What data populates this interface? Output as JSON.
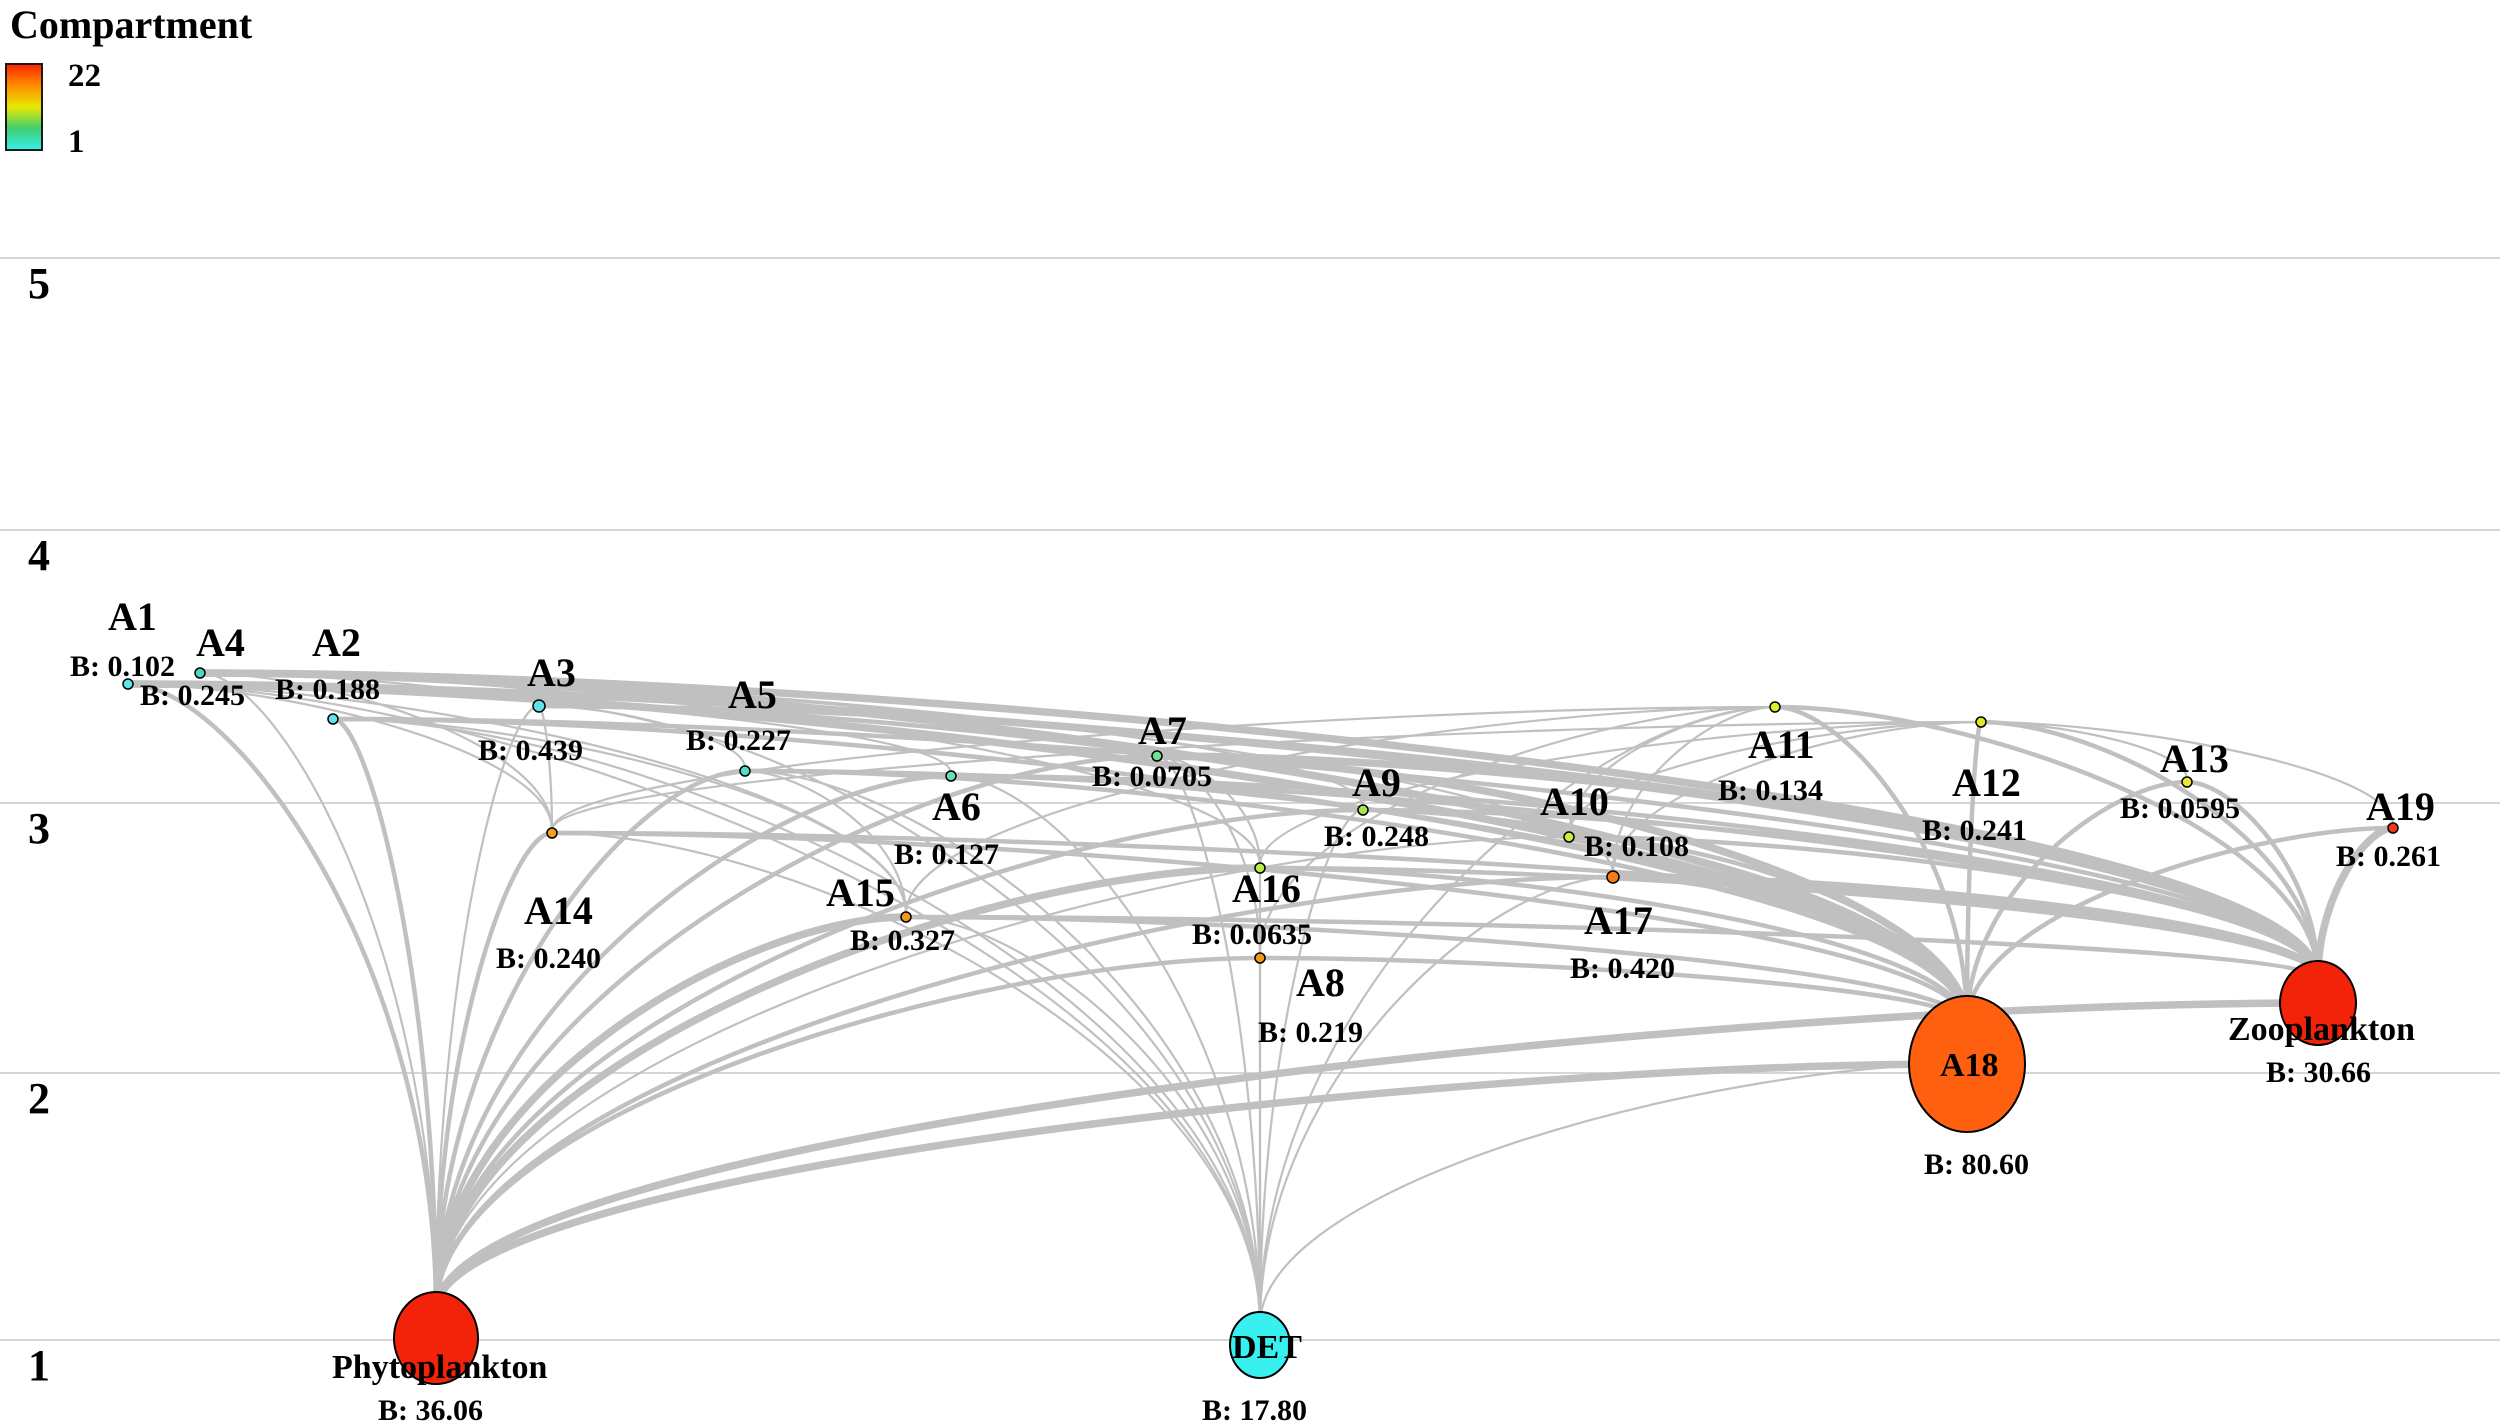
{
  "legend": {
    "title": "Compartment",
    "max_label": "22",
    "min_label": "1",
    "gradient_colors": [
      "#ff2200",
      "#ff8c00",
      "#e8e800",
      "#3ecf70",
      "#38f0f0"
    ]
  },
  "axis": {
    "ticks": [
      "1",
      "2",
      "3",
      "4",
      "5"
    ],
    "grid_color": "#c8c8c8"
  },
  "edge_color": "#c0c0c0",
  "nodes": [
    {
      "id": "Phytoplankton",
      "name": "Phytoplankton",
      "biomass": "B: 36.06",
      "trophic_level": 1.0,
      "color": "#f22308"
    },
    {
      "id": "DET",
      "name": "DET",
      "biomass": "B: 17.80",
      "trophic_level": 1.0,
      "color": "#38f0f0"
    },
    {
      "id": "A1",
      "name": "A1",
      "biomass": "B: 0.102",
      "trophic_level": 3.43,
      "color": "#5ee6e6"
    },
    {
      "id": "A4",
      "name": "A4",
      "biomass": "B: 0.245",
      "trophic_level": 3.47,
      "color": "#4ed6c0"
    },
    {
      "id": "A2",
      "name": "A2",
      "biomass": "B: 0.188",
      "trophic_level": 3.3,
      "color": "#62e2e6"
    },
    {
      "id": "A3",
      "name": "A3",
      "biomass": "B: 0.439",
      "trophic_level": 3.35,
      "color": "#62e0e6"
    },
    {
      "id": "A5",
      "name": "A5",
      "biomass": "B: 0.227",
      "trophic_level": 3.12,
      "color": "#55dcc4"
    },
    {
      "id": "A6",
      "name": "A6",
      "biomass": "B: 0.127",
      "trophic_level": 3.1,
      "color": "#66dfb0"
    },
    {
      "id": "A7",
      "name": "A7",
      "biomass": "B: 0.0705",
      "trophic_level": 3.17,
      "color": "#70e090"
    },
    {
      "id": "A9",
      "name": "A9",
      "biomass": "B: 0.248",
      "trophic_level": 2.97,
      "color": "#a6e650"
    },
    {
      "id": "A10",
      "name": "A10",
      "biomass": "B: 0.108",
      "trophic_level": 2.87,
      "color": "#c4ee40"
    },
    {
      "id": "A11",
      "name": "A11",
      "biomass": "B: 0.134",
      "trophic_level": 3.35,
      "color": "#dcee2c"
    },
    {
      "id": "A12",
      "name": "A12",
      "biomass": "B: 0.241",
      "trophic_level": 3.29,
      "color": "#e6e628"
    },
    {
      "id": "A13",
      "name": "A13",
      "biomass": "B: 0.0595",
      "trophic_level": 3.07,
      "color": "#ece634"
    },
    {
      "id": "A19",
      "name": "A19",
      "biomass": "B: 0.261",
      "trophic_level": 2.9,
      "color": "#f23818"
    },
    {
      "id": "A14",
      "name": "A14",
      "biomass": "B: 0.240",
      "trophic_level": 2.89,
      "color": "#f2a21e"
    },
    {
      "id": "A15",
      "name": "A15",
      "biomass": "B: 0.327",
      "trophic_level": 2.57,
      "color": "#f29a20"
    },
    {
      "id": "A16",
      "name": "A16",
      "biomass": "B: 0.0635",
      "trophic_level": 2.76,
      "color": "#b8ee4a"
    },
    {
      "id": "A8",
      "name": "A8",
      "biomass": "B: 0.219",
      "trophic_level": 2.43,
      "color": "#f2961c"
    },
    {
      "id": "A17",
      "name": "A17",
      "biomass": "B: 0.420",
      "trophic_level": 2.73,
      "color": "#f27c18"
    },
    {
      "id": "A18",
      "name": "A18",
      "biomass": "B: 80.60",
      "trophic_level": 2.02,
      "color": "#ff6010"
    },
    {
      "id": "Zooplankton",
      "name": "Zooplankton",
      "biomass": "B: 30.66",
      "trophic_level": 2.25,
      "color": "#f22308"
    }
  ],
  "flows": [
    [
      "Phytoplankton",
      "A18",
      3
    ],
    [
      "Phytoplankton",
      "Zooplankton",
      3
    ],
    [
      "Phytoplankton",
      "A1",
      2
    ],
    [
      "Phytoplankton",
      "A4",
      1
    ],
    [
      "Phytoplankton",
      "A2",
      2
    ],
    [
      "Phytoplankton",
      "A3",
      1
    ],
    [
      "Phytoplankton",
      "A5",
      2
    ],
    [
      "Phytoplankton",
      "A6",
      2
    ],
    [
      "Phytoplankton",
      "A7",
      2
    ],
    [
      "Phytoplankton",
      "A9",
      2
    ],
    [
      "Phytoplankton",
      "A14",
      2
    ],
    [
      "Phytoplankton",
      "A15",
      3
    ],
    [
      "Phytoplankton",
      "A16",
      3
    ],
    [
      "Phytoplankton",
      "A8",
      2
    ],
    [
      "Phytoplankton",
      "A17",
      2
    ],
    [
      "Phytoplankton",
      "A10",
      1
    ],
    [
      "DET",
      "A1",
      1
    ],
    [
      "DET",
      "A2",
      1
    ],
    [
      "DET",
      "A3",
      1
    ],
    [
      "DET",
      "A5",
      1
    ],
    [
      "DET",
      "A6",
      1
    ],
    [
      "DET",
      "A7",
      1
    ],
    [
      "DET",
      "A14",
      1
    ],
    [
      "DET",
      "A15",
      1
    ],
    [
      "DET",
      "A16",
      1
    ],
    [
      "DET",
      "A8",
      1
    ],
    [
      "DET",
      "A9",
      1
    ],
    [
      "DET",
      "A11",
      1
    ],
    [
      "DET",
      "A18",
      1
    ],
    [
      "DET",
      "A17",
      1
    ],
    [
      "A18",
      "A1",
      3
    ],
    [
      "A18",
      "A4",
      3
    ],
    [
      "A18",
      "A2",
      2
    ],
    [
      "A18",
      "A3",
      2
    ],
    [
      "A18",
      "A5",
      2
    ],
    [
      "A18",
      "A6",
      2
    ],
    [
      "A18",
      "A7",
      3
    ],
    [
      "A18",
      "A9",
      2
    ],
    [
      "A18",
      "A10",
      2
    ],
    [
      "A18",
      "A11",
      2
    ],
    [
      "A18",
      "A12",
      2
    ],
    [
      "A18",
      "A14",
      2
    ],
    [
      "A18",
      "A15",
      2
    ],
    [
      "A18",
      "A16",
      2
    ],
    [
      "A18",
      "A8",
      2
    ],
    [
      "A18",
      "A17",
      2
    ],
    [
      "A18",
      "A13",
      2
    ],
    [
      "A18",
      "A19",
      2
    ],
    [
      "Zooplankton",
      "A1",
      3
    ],
    [
      "Zooplankton",
      "A4",
      3
    ],
    [
      "Zooplankton",
      "A2",
      2
    ],
    [
      "Zooplankton",
      "A3",
      2
    ],
    [
      "Zooplankton",
      "A5",
      2
    ],
    [
      "Zooplankton",
      "A6",
      2
    ],
    [
      "Zooplankton",
      "A7",
      3
    ],
    [
      "Zooplankton",
      "A9",
      2
    ],
    [
      "Zooplankton",
      "A10",
      2
    ],
    [
      "Zooplankton",
      "A11",
      2
    ],
    [
      "Zooplankton",
      "A12",
      2
    ],
    [
      "Zooplankton",
      "A13",
      2
    ],
    [
      "Zooplankton",
      "A19",
      3
    ],
    [
      "Zooplankton",
      "A14",
      2
    ],
    [
      "Zooplankton",
      "A15",
      2
    ],
    [
      "Zooplankton",
      "A16",
      2
    ],
    [
      "Zooplankton",
      "A17",
      3
    ],
    [
      "A14",
      "A1",
      1
    ],
    [
      "A14",
      "A4",
      1
    ],
    [
      "A14",
      "A3",
      1
    ],
    [
      "A14",
      "A11",
      1
    ],
    [
      "A14",
      "A12",
      1
    ],
    [
      "A15",
      "A1",
      1
    ],
    [
      "A15",
      "A2",
      1
    ],
    [
      "A15",
      "A5",
      1
    ],
    [
      "A15",
      "A11",
      1
    ],
    [
      "A16",
      "A4",
      1
    ],
    [
      "A16",
      "A7",
      1
    ],
    [
      "A16",
      "A12",
      1
    ],
    [
      "A17",
      "A11",
      1
    ],
    [
      "A17",
      "A12",
      1
    ],
    [
      "A17",
      "A4",
      1
    ],
    [
      "A8",
      "A7",
      1
    ],
    [
      "A8",
      "A11",
      1
    ],
    [
      "A6",
      "A1",
      1
    ],
    [
      "A9",
      "A4",
      1
    ],
    [
      "A10",
      "A11",
      1
    ],
    [
      "A10",
      "A12",
      1
    ],
    [
      "A13",
      "A12",
      1
    ],
    [
      "A19",
      "A12",
      1
    ],
    [
      "A5",
      "A4",
      1
    ]
  ]
}
